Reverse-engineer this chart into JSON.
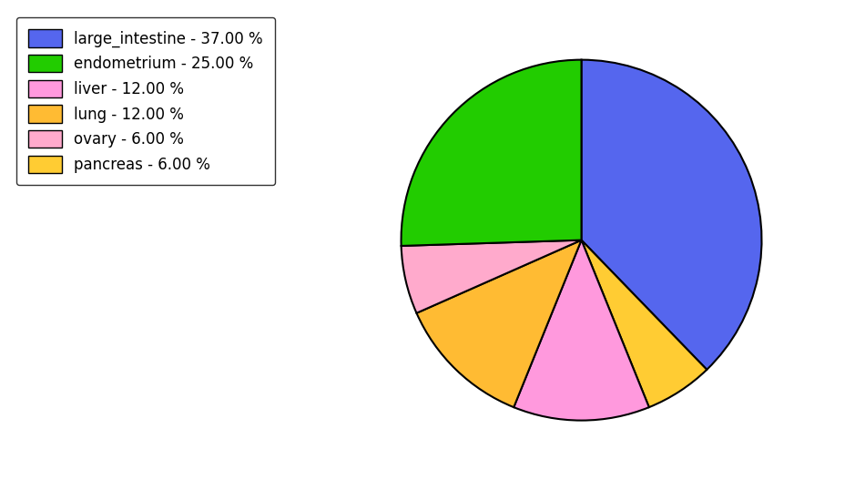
{
  "labels": [
    "large_intestine",
    "endometrium",
    "liver",
    "lung",
    "ovary",
    "pancreas"
  ],
  "values": [
    37.0,
    25.0,
    12.0,
    12.0,
    6.0,
    6.0
  ],
  "slice_colors": [
    "#5566ee",
    "#22cc00",
    "#ff99dd",
    "#ffbb33",
    "#ffaacc",
    "#ffcc33"
  ],
  "legend_labels": [
    "large_intestine - 37.00 %",
    "endometrium - 25.00 %",
    "liver - 12.00 %",
    "lung - 12.00 %",
    "ovary - 6.00 %",
    "pancreas - 6.00 %"
  ],
  "legend_colors": [
    "#5566ee",
    "#22cc00",
    "#ff99dd",
    "#ffbb33",
    "#ffaacc",
    "#ffcc33"
  ],
  "figsize": [
    9.39,
    5.38
  ],
  "dpi": 100
}
